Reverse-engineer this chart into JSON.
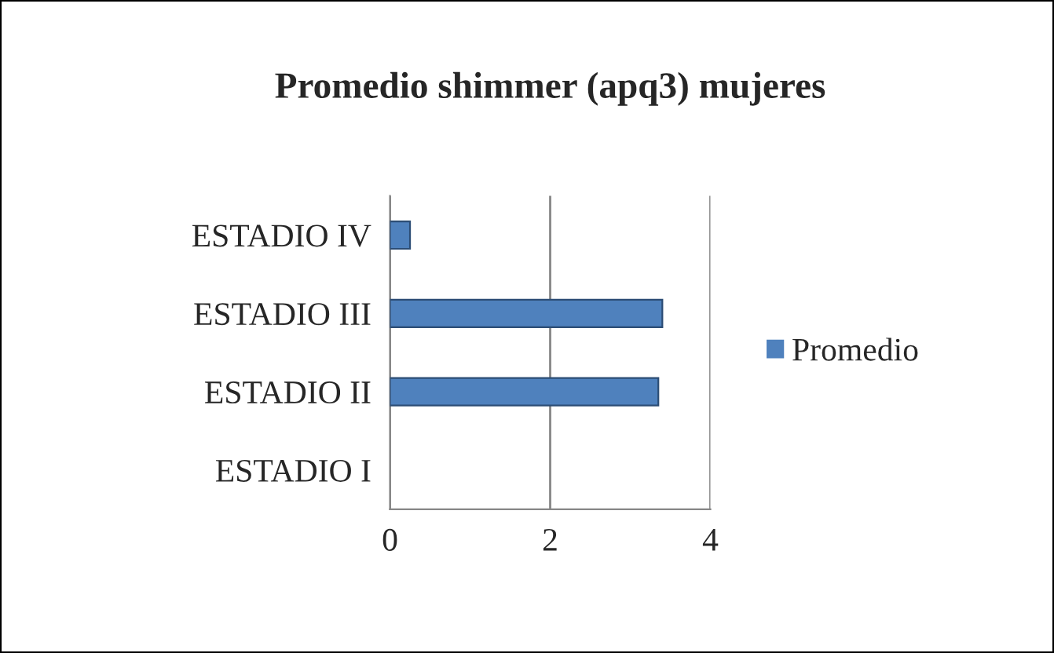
{
  "chart_data": {
    "type": "bar",
    "orientation": "horizontal",
    "title": "Promedio shimmer (apq3) mujeres",
    "categories": [
      "ESTADIO IV",
      "ESTADIO III",
      "ESTADIO II",
      "ESTADIO I"
    ],
    "series": [
      {
        "name": "Promedio",
        "color": "#4f81bd",
        "values": [
          0.25,
          3.4,
          3.35,
          null
        ]
      }
    ],
    "xlim": [
      0,
      4
    ],
    "xticks": [
      0,
      2,
      4
    ],
    "grid": "x",
    "legend": "right"
  }
}
